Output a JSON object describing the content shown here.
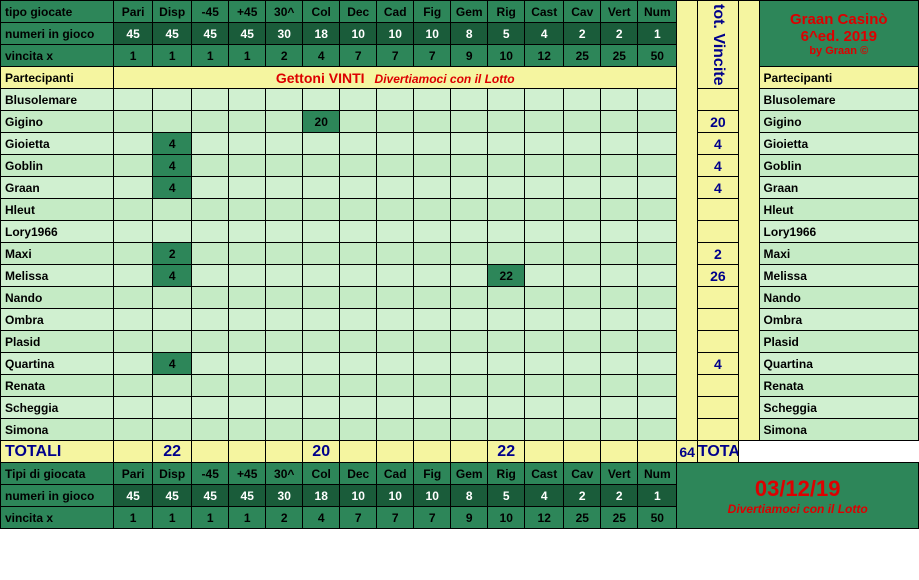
{
  "headers": {
    "row1_label": "tipo giocate",
    "row2_label": "numeri in gioco",
    "row3_label": "vincita x",
    "cols": [
      "Pari",
      "Disp",
      "-45",
      "+45",
      "30^",
      "Col",
      "Dec",
      "Cad",
      "Fig",
      "Gem",
      "Rig",
      "Cast",
      "Cav",
      "Vert",
      "Num"
    ],
    "row2_vals": [
      "45",
      "45",
      "45",
      "45",
      "30",
      "18",
      "10",
      "10",
      "10",
      "8",
      "5",
      "4",
      "2",
      "2",
      "1"
    ],
    "row3_vals": [
      "1",
      "1",
      "1",
      "1",
      "2",
      "4",
      "7",
      "7",
      "7",
      "9",
      "10",
      "12",
      "25",
      "25",
      "50"
    ],
    "tot_label": "tot. Vincite",
    "title1": "Graan Casinò",
    "title2": "6^ed. 2019",
    "title3": "by Graan ©"
  },
  "banner": {
    "partecipanti": "Partecipanti",
    "gettoni": "Gettoni VINTI",
    "diver": "Divertiamoci con il Lotto"
  },
  "players": [
    {
      "name": "Blusolemare",
      "cells": [
        "",
        "",
        "",
        "",
        "",
        "",
        "",
        "",
        "",
        "",
        "",
        "",
        "",
        "",
        ""
      ],
      "hit": [],
      "tot": ""
    },
    {
      "name": "Gigino",
      "cells": [
        "",
        "",
        "",
        "",
        "",
        "20",
        "",
        "",
        "",
        "",
        "",
        "",
        "",
        "",
        ""
      ],
      "hit": [
        5
      ],
      "tot": "20"
    },
    {
      "name": "Gioietta",
      "cells": [
        "",
        "4",
        "",
        "",
        "",
        "",
        "",
        "",
        "",
        "",
        "",
        "",
        "",
        "",
        ""
      ],
      "hit": [
        1
      ],
      "tot": "4"
    },
    {
      "name": "Goblin",
      "cells": [
        "",
        "4",
        "",
        "",
        "",
        "",
        "",
        "",
        "",
        "",
        "",
        "",
        "",
        "",
        ""
      ],
      "hit": [
        1
      ],
      "tot": "4"
    },
    {
      "name": "Graan",
      "cells": [
        "",
        "4",
        "",
        "",
        "",
        "",
        "",
        "",
        "",
        "",
        "",
        "",
        "",
        "",
        ""
      ],
      "hit": [
        1
      ],
      "tot": "4"
    },
    {
      "name": "Hleut",
      "cells": [
        "",
        "",
        "",
        "",
        "",
        "",
        "",
        "",
        "",
        "",
        "",
        "",
        "",
        "",
        ""
      ],
      "hit": [],
      "tot": ""
    },
    {
      "name": "Lory1966",
      "cells": [
        "",
        "",
        "",
        "",
        "",
        "",
        "",
        "",
        "",
        "",
        "",
        "",
        "",
        "",
        ""
      ],
      "hit": [],
      "tot": ""
    },
    {
      "name": "Maxi",
      "cells": [
        "",
        "2",
        "",
        "",
        "",
        "",
        "",
        "",
        "",
        "",
        "",
        "",
        "",
        "",
        ""
      ],
      "hit": [
        1
      ],
      "tot": "2"
    },
    {
      "name": "Melissa",
      "cells": [
        "",
        "4",
        "",
        "",
        "",
        "",
        "",
        "",
        "",
        "",
        "22",
        "",
        "",
        "",
        ""
      ],
      "hit": [
        1,
        10
      ],
      "tot": "26"
    },
    {
      "name": "Nando",
      "cells": [
        "",
        "",
        "",
        "",
        "",
        "",
        "",
        "",
        "",
        "",
        "",
        "",
        "",
        "",
        ""
      ],
      "hit": [],
      "tot": ""
    },
    {
      "name": "Ombra",
      "cells": [
        "",
        "",
        "",
        "",
        "",
        "",
        "",
        "",
        "",
        "",
        "",
        "",
        "",
        "",
        ""
      ],
      "hit": [],
      "tot": ""
    },
    {
      "name": "Plasid",
      "cells": [
        "",
        "",
        "",
        "",
        "",
        "",
        "",
        "",
        "",
        "",
        "",
        "",
        "",
        "",
        ""
      ],
      "hit": [],
      "tot": ""
    },
    {
      "name": "Quartina",
      "cells": [
        "",
        "4",
        "",
        "",
        "",
        "",
        "",
        "",
        "",
        "",
        "",
        "",
        "",
        "",
        ""
      ],
      "hit": [
        1
      ],
      "tot": "4"
    },
    {
      "name": "Renata",
      "cells": [
        "",
        "",
        "",
        "",
        "",
        "",
        "",
        "",
        "",
        "",
        "",
        "",
        "",
        "",
        ""
      ],
      "hit": [],
      "tot": ""
    },
    {
      "name": "Scheggia",
      "cells": [
        "",
        "",
        "",
        "",
        "",
        "",
        "",
        "",
        "",
        "",
        "",
        "",
        "",
        "",
        ""
      ],
      "hit": [],
      "tot": ""
    },
    {
      "name": "Simona",
      "cells": [
        "",
        "",
        "",
        "",
        "",
        "",
        "",
        "",
        "",
        "",
        "",
        "",
        "",
        "",
        ""
      ],
      "hit": [],
      "tot": ""
    }
  ],
  "totals": {
    "label": "TOTALI",
    "cells": [
      "",
      "22",
      "",
      "",
      "",
      "20",
      "",
      "",
      "",
      "",
      "22",
      "",
      "",
      "",
      ""
    ],
    "sum": "64"
  },
  "footer": {
    "row1_label": "Tipi di giocata",
    "date": "03/12/19",
    "subtitle": "Divertiamoci con il Lotto"
  }
}
